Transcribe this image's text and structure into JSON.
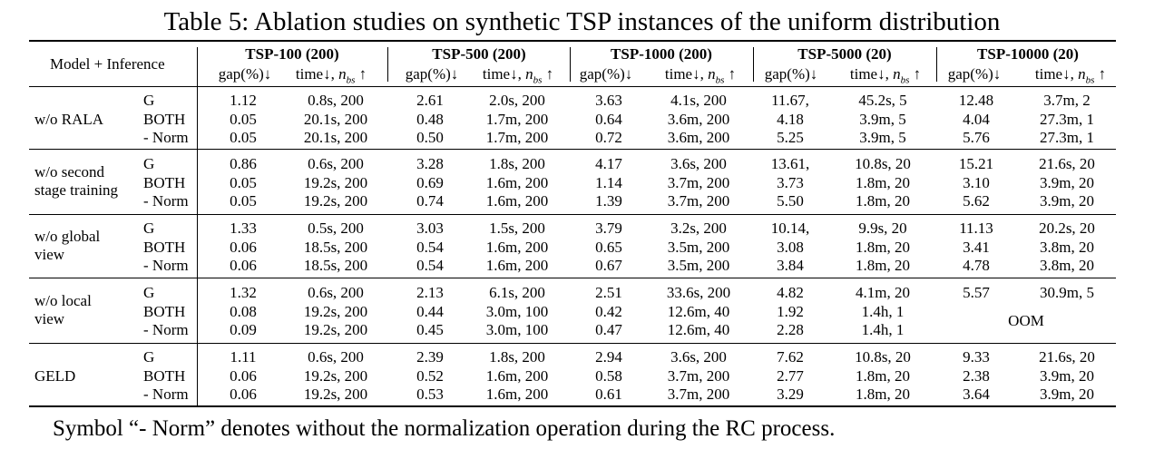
{
  "caption": "Table 5: Ablation studies on synthetic TSP instances of the uniform distribution",
  "note": "Symbol “- Norm” denotes without the normalization operation during the RC process.",
  "header": {
    "model_inference": "Model + Inference",
    "gap_label": "gap(%)↓",
    "time_label": "time↓,",
    "nbs_label": "n",
    "nbs_sub": "bs",
    "up_arrow": "↑",
    "groups": [
      "TSP-100 (200)",
      "TSP-500 (200)",
      "TSP-1000 (200)",
      "TSP-5000 (20)",
      "TSP-10000 (20)"
    ]
  },
  "blocks": [
    {
      "name": [
        "w/o RALA"
      ],
      "rows": [
        {
          "inf": "G",
          "cells": [
            [
              "1.12",
              "0.8s, 200"
            ],
            [
              "2.61",
              "2.0s, 200"
            ],
            [
              "3.63",
              "4.1s, 200"
            ],
            [
              "11.67,",
              "45.2s, 5"
            ],
            [
              "12.48",
              "3.7m, 2"
            ]
          ]
        },
        {
          "inf": "BOTH",
          "cells": [
            [
              "0.05",
              "20.1s, 200"
            ],
            [
              "0.48",
              "1.7m, 200"
            ],
            [
              "0.64",
              "3.6m, 200"
            ],
            [
              "4.18",
              "3.9m, 5"
            ],
            [
              "4.04",
              "27.3m, 1"
            ]
          ]
        },
        {
          "inf": "- Norm",
          "cells": [
            [
              "0.05",
              "20.1s, 200"
            ],
            [
              "0.50",
              "1.7m, 200"
            ],
            [
              "0.72",
              "3.6m, 200"
            ],
            [
              "5.25",
              "3.9m, 5"
            ],
            [
              "5.76",
              "27.3m, 1"
            ]
          ]
        }
      ]
    },
    {
      "name": [
        "w/o second",
        "stage training"
      ],
      "rows": [
        {
          "inf": "G",
          "cells": [
            [
              "0.86",
              "0.6s, 200"
            ],
            [
              "3.28",
              "1.8s, 200"
            ],
            [
              "4.17",
              "3.6s, 200"
            ],
            [
              "13.61,",
              "10.8s, 20"
            ],
            [
              "15.21",
              "21.6s, 20"
            ]
          ]
        },
        {
          "inf": "BOTH",
          "cells": [
            [
              "0.05",
              "19.2s, 200"
            ],
            [
              "0.69",
              "1.6m, 200"
            ],
            [
              "1.14",
              "3.7m, 200"
            ],
            [
              "3.73",
              "1.8m, 20"
            ],
            [
              "3.10",
              "3.9m, 20"
            ]
          ]
        },
        {
          "inf": "- Norm",
          "cells": [
            [
              "0.05",
              "19.2s, 200"
            ],
            [
              "0.74",
              "1.6m, 200"
            ],
            [
              "1.39",
              "3.7m, 200"
            ],
            [
              "5.50",
              "1.8m, 20"
            ],
            [
              "5.62",
              "3.9m, 20"
            ]
          ]
        }
      ]
    },
    {
      "name": [
        "w/o global",
        "view"
      ],
      "rows": [
        {
          "inf": "G",
          "cells": [
            [
              "1.33",
              "0.5s, 200"
            ],
            [
              "3.03",
              "1.5s, 200"
            ],
            [
              "3.79",
              "3.2s, 200"
            ],
            [
              "10.14,",
              "9.9s, 20"
            ],
            [
              "11.13",
              "20.2s, 20"
            ]
          ]
        },
        {
          "inf": "BOTH",
          "cells": [
            [
              "0.06",
              "18.5s, 200"
            ],
            [
              "0.54",
              "1.6m, 200"
            ],
            [
              "0.65",
              "3.5m, 200"
            ],
            [
              "3.08",
              "1.8m, 20"
            ],
            [
              "3.41",
              "3.8m, 20"
            ]
          ]
        },
        {
          "inf": "- Norm",
          "cells": [
            [
              "0.06",
              "18.5s, 200"
            ],
            [
              "0.54",
              "1.6m, 200"
            ],
            [
              "0.67",
              "3.5m, 200"
            ],
            [
              "3.84",
              "1.8m, 20"
            ],
            [
              "4.78",
              "3.8m, 20"
            ]
          ]
        }
      ]
    },
    {
      "name": [
        "w/o local",
        "view"
      ],
      "oom": "OOM",
      "rows": [
        {
          "inf": "G",
          "cells": [
            [
              "1.32",
              "0.6s, 200"
            ],
            [
              "2.13",
              "6.1s, 200"
            ],
            [
              "2.51",
              "33.6s, 200"
            ],
            [
              "4.82",
              "4.1m, 20"
            ],
            [
              "5.57",
              "30.9m, 5"
            ]
          ]
        },
        {
          "inf": "BOTH",
          "cells": [
            [
              "0.08",
              "19.2s, 200"
            ],
            [
              "0.44",
              "3.0m, 100"
            ],
            [
              "0.42",
              "12.6m, 40"
            ],
            [
              "1.92",
              "1.4h, 1"
            ]
          ]
        },
        {
          "inf": "- Norm",
          "cells": [
            [
              "0.09",
              "19.2s, 200"
            ],
            [
              "0.45",
              "3.0m, 100"
            ],
            [
              "0.47",
              "12.6m, 40"
            ],
            [
              "2.28",
              "1.4h, 1"
            ]
          ]
        }
      ]
    },
    {
      "name": [
        "GELD"
      ],
      "rows": [
        {
          "inf": "G",
          "cells": [
            [
              "1.11",
              "0.6s, 200"
            ],
            [
              "2.39",
              "1.8s, 200"
            ],
            [
              "2.94",
              "3.6s, 200"
            ],
            [
              "7.62",
              "10.8s, 20"
            ],
            [
              "9.33",
              "21.6s, 20"
            ]
          ]
        },
        {
          "inf": "BOTH",
          "cells": [
            [
              "0.06",
              "19.2s, 200"
            ],
            [
              "0.52",
              "1.6m, 200"
            ],
            [
              "0.58",
              "3.7m, 200"
            ],
            [
              "2.77",
              "1.8m, 20"
            ],
            [
              "2.38",
              "3.9m, 20"
            ]
          ]
        },
        {
          "inf": "- Norm",
          "cells": [
            [
              "0.06",
              "19.2s, 200"
            ],
            [
              "0.53",
              "1.6m, 200"
            ],
            [
              "0.61",
              "3.7m, 200"
            ],
            [
              "3.29",
              "1.8m, 20"
            ],
            [
              "3.64",
              "3.9m, 20"
            ]
          ]
        }
      ]
    }
  ]
}
